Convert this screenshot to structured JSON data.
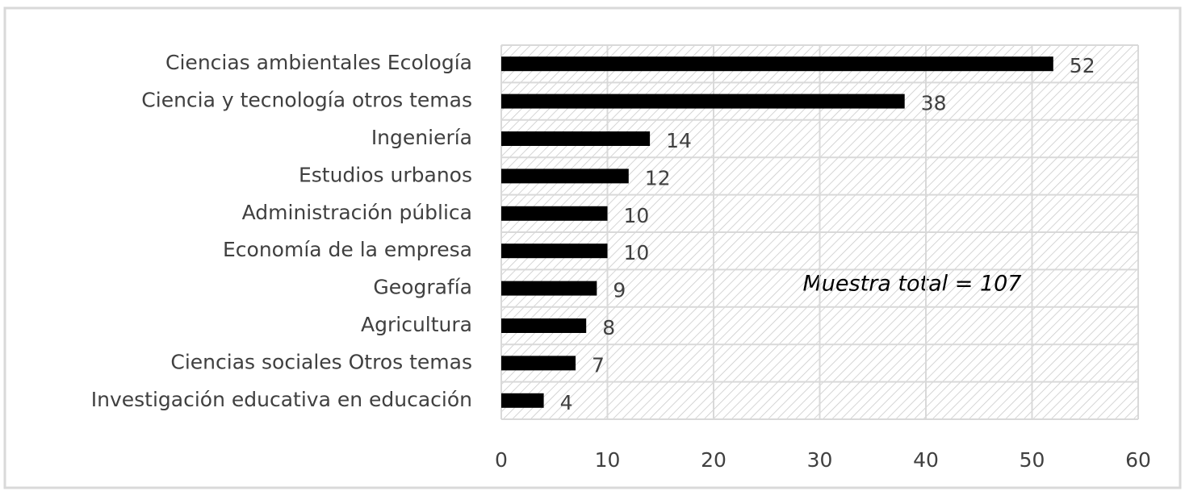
{
  "chart_data": {
    "type": "bar",
    "orientation": "horizontal",
    "categories": [
      "Ciencias ambientales Ecología",
      "Ciencia y tecnología otros temas",
      "Ingeniería",
      "Estudios urbanos",
      "Administración pública",
      "Economía de la empresa",
      "Geografía",
      "Agricultura",
      "Ciencias sociales Otros temas",
      "Investigación educativa en educación"
    ],
    "values": [
      52,
      38,
      14,
      12,
      10,
      10,
      9,
      8,
      7,
      4
    ],
    "color": "#000000",
    "xlim": [
      0,
      60
    ],
    "xticks": [
      0,
      10,
      20,
      30,
      40,
      50,
      60
    ],
    "grid": true,
    "annotation": "Muestra total = 107"
  }
}
